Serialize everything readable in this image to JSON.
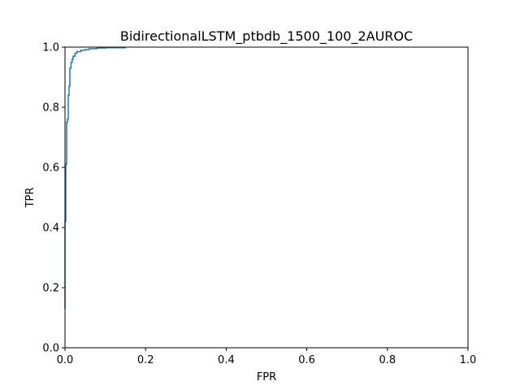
{
  "chart_data": {
    "type": "line",
    "title": "BidirectionalLSTM_ptbdb_1500_100_2AUROC",
    "xlabel": "FPR",
    "ylabel": "TPR",
    "xlim": [
      0.0,
      1.0
    ],
    "ylim": [
      0.0,
      1.0
    ],
    "xticks": [
      "0.0",
      "0.2",
      "0.4",
      "0.6",
      "0.8",
      "1.0"
    ],
    "yticks": [
      "0.0",
      "0.2",
      "0.4",
      "0.6",
      "0.8",
      "1.0"
    ],
    "grid": false,
    "series": [
      {
        "color": "#1f77b4",
        "x": [
          0.0,
          0.0,
          0.002,
          0.002,
          0.004,
          0.004,
          0.006,
          0.006,
          0.008,
          0.008,
          0.01,
          0.01,
          0.012,
          0.012,
          0.015,
          0.015,
          0.018,
          0.018,
          0.02,
          0.02,
          0.025,
          0.025,
          0.03,
          0.03,
          0.04,
          0.04,
          0.05,
          0.05,
          0.06,
          0.06,
          0.08,
          0.08,
          0.1,
          0.1,
          0.15,
          0.15
        ],
        "y": [
          0.13,
          0.42,
          0.42,
          0.61,
          0.61,
          0.75,
          0.75,
          0.76,
          0.76,
          0.84,
          0.84,
          0.87,
          0.87,
          0.93,
          0.93,
          0.95,
          0.95,
          0.96,
          0.96,
          0.97,
          0.97,
          0.98,
          0.98,
          0.985,
          0.985,
          0.99,
          0.99,
          0.992,
          0.992,
          0.995,
          0.995,
          0.997,
          0.997,
          0.998,
          0.998,
          1.0
        ]
      }
    ]
  }
}
